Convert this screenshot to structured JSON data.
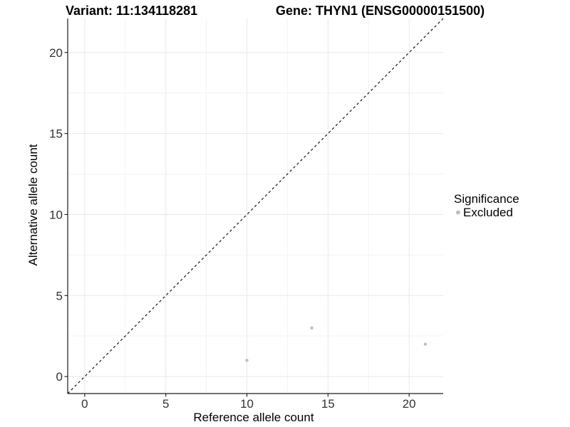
{
  "figure": {
    "background_color": "#ffffff"
  },
  "chart_data": {
    "type": "scatter",
    "title_left": "Variant: 11:134118281",
    "title_right": "Gene: THYN1 (ENSG00000151500)",
    "xlabel": "Reference allele count",
    "ylabel": "Alternative allele count",
    "xlim": [
      -1.05,
      22.1
    ],
    "ylim": [
      -1.05,
      22.1
    ],
    "x_ticks": [
      0,
      5,
      10,
      15,
      20
    ],
    "y_ticks": [
      0,
      5,
      10,
      15,
      20
    ],
    "x_minor_ticks": [
      2.5,
      7.5,
      12.5,
      17.5
    ],
    "y_minor_ticks": [
      2.5,
      7.5,
      12.5,
      17.5
    ],
    "grid": true,
    "grid_major_color": "#e8e8e8",
    "grid_minor_color": "#f3f3f3",
    "axis_line_color": "#1a1a1a",
    "identity_line": {
      "style": "dashed",
      "slope": 1,
      "intercept": 0,
      "color": "#000000"
    },
    "series": [
      {
        "name": "Excluded",
        "color": "#bebebe",
        "points": [
          {
            "x": 10,
            "y": 1
          },
          {
            "x": 14,
            "y": 3
          },
          {
            "x": 21,
            "y": 2
          }
        ]
      }
    ],
    "legend": {
      "title": "Significance",
      "position": "right",
      "entries": [
        {
          "label": "Excluded",
          "color": "#bebebe"
        }
      ]
    }
  }
}
